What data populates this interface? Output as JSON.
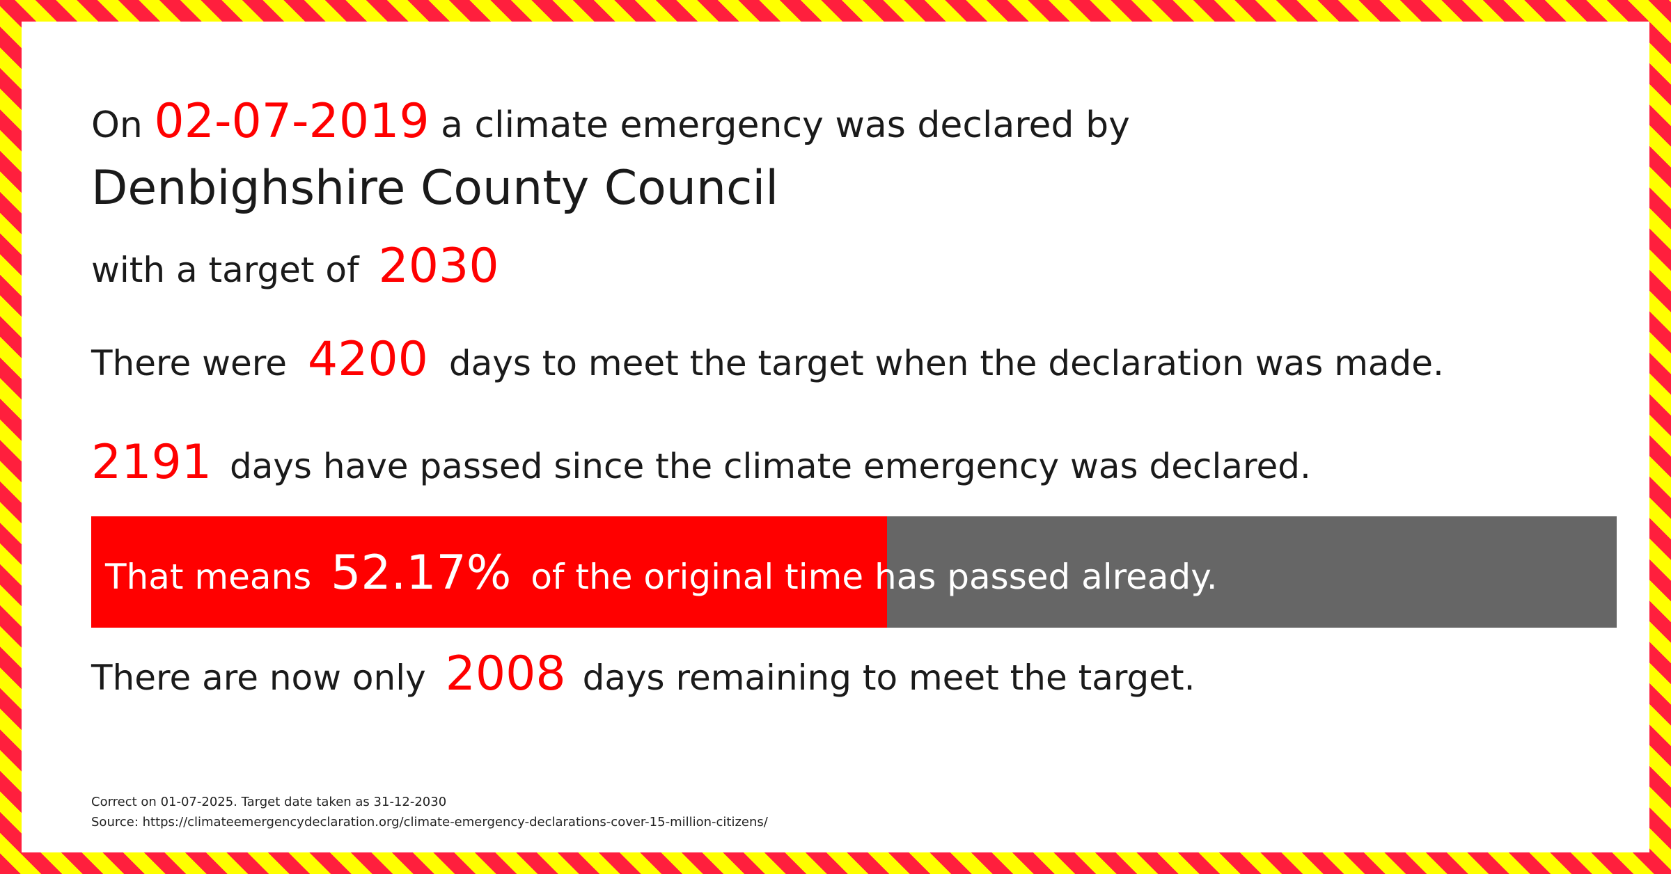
{
  "declaration": {
    "prefix": "On",
    "date": "02-07-2019",
    "suffix": "a climate emergency was declared by",
    "body": "Denbighshire County Council",
    "target_prefix": "with a target of",
    "target_year": "2030"
  },
  "days_total": {
    "prefix": "There were",
    "value": "4200",
    "suffix": "days to meet the target when the declaration was made."
  },
  "days_passed": {
    "value": "2191",
    "suffix": "days have passed since the climate emergency was declared."
  },
  "progress": {
    "prefix": "That means",
    "percent_label": "52.17%",
    "suffix": "of the original time has passed already.",
    "fraction": 0.5217,
    "fill_color": "#ff0000",
    "track_color": "#666666"
  },
  "days_remaining": {
    "prefix": "There are now only",
    "value": "2008",
    "suffix": "days remaining to meet the target."
  },
  "footer": {
    "note": "Correct on 01-07-2025. Target date taken as 31-12-2030",
    "source": "Source: https://climateemergencydeclaration.org/climate-emergency-declarations-cover-15-million-citizens/"
  },
  "colors": {
    "accent": "#ff0000",
    "stripe_red": "#ff1f3d",
    "stripe_yellow": "#ffff00"
  }
}
